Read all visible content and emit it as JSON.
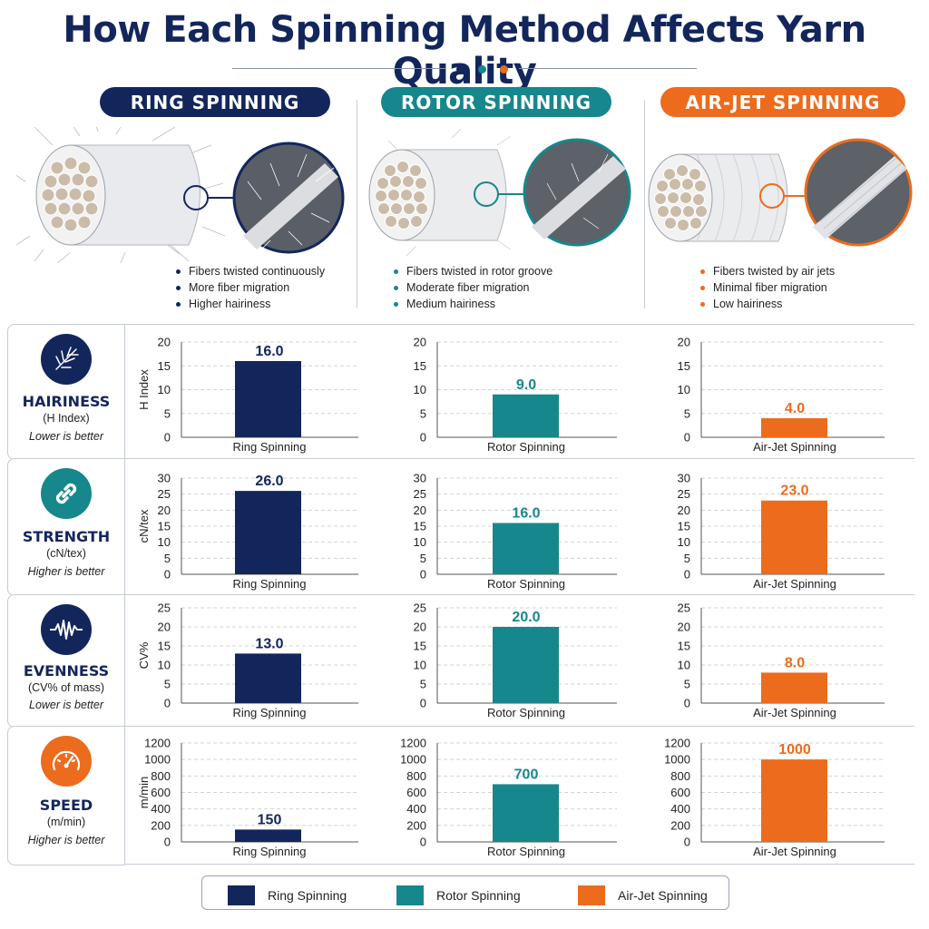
{
  "title": "How Each Spinning Method Affects Yarn Quality",
  "colors": {
    "ring": "#13265c",
    "rotor": "#16878c",
    "airjet": "#ec6b1c"
  },
  "methods": [
    {
      "key": "ring",
      "header": "RING SPINNING",
      "label": "Ring Spinning",
      "bullets": [
        "Fibers twisted continuously",
        "More fiber migration",
        "Higher hairiness"
      ]
    },
    {
      "key": "rotor",
      "header": "ROTOR SPINNING",
      "label": "Rotor Spinning",
      "bullets": [
        "Fibers twisted in rotor groove",
        "Moderate fiber migration",
        "Medium hairiness"
      ]
    },
    {
      "key": "airjet",
      "header": "AIR-JET SPINNING",
      "label": "Air-Jet Spinning",
      "bullets": [
        "Fibers twisted by air jets",
        "Minimal fiber migration",
        "Low hairiness"
      ]
    }
  ],
  "metrics": [
    {
      "name": "HAIRINESS",
      "unit": "(H Index)",
      "note": "Lower is better",
      "icon": "hairiness-icon"
    },
    {
      "name": "STRENGTH",
      "unit": "(cN/tex)",
      "note": "Higher is better",
      "icon": "chain-link-icon"
    },
    {
      "name": "EVENNESS",
      "unit": "(CV% of mass)",
      "note": "Lower is better",
      "icon": "waveform-icon"
    },
    {
      "name": "SPEED",
      "unit": "(m/min)",
      "note": "Higher is better",
      "icon": "speedometer-icon"
    }
  ],
  "legend": [
    "Ring Spinning",
    "Rotor Spinning",
    "Air-Jet Spinning"
  ],
  "chart_data": [
    {
      "type": "bar",
      "metric": "HAIRINESS",
      "ylabel": "H Index",
      "ylim": [
        0,
        20
      ],
      "yticks": [
        0,
        5,
        10,
        15,
        20
      ],
      "grid": true,
      "categories": [
        "Ring Spinning",
        "Rotor Spinning",
        "Air-Jet Spinning"
      ],
      "values": [
        16.0,
        9.0,
        4.0
      ],
      "value_labels": [
        "16.0",
        "9.0",
        "4.0"
      ]
    },
    {
      "type": "bar",
      "metric": "STRENGTH",
      "ylabel": "cN/tex",
      "ylim": [
        0,
        30
      ],
      "yticks": [
        0,
        5,
        10,
        15,
        20,
        25,
        30
      ],
      "grid": true,
      "categories": [
        "Ring Spinning",
        "Rotor Spinning",
        "Air-Jet Spinning"
      ],
      "values": [
        26.0,
        16.0,
        23.0
      ],
      "value_labels": [
        "26.0",
        "16.0",
        "23.0"
      ]
    },
    {
      "type": "bar",
      "metric": "EVENNESS",
      "ylabel": "CV%",
      "ylim": [
        0,
        25
      ],
      "yticks": [
        0,
        5,
        10,
        15,
        20,
        25
      ],
      "grid": true,
      "categories": [
        "Ring Spinning",
        "Rotor Spinning",
        "Air-Jet Spinning"
      ],
      "values": [
        13.0,
        20.0,
        8.0
      ],
      "value_labels": [
        "13.0",
        "20.0",
        "8.0"
      ]
    },
    {
      "type": "bar",
      "metric": "SPEED",
      "ylabel": "m/min",
      "ylim": [
        0,
        1200
      ],
      "yticks": [
        0,
        200,
        400,
        600,
        800,
        1000,
        1200
      ],
      "grid": true,
      "categories": [
        "Ring Spinning",
        "Rotor Spinning",
        "Air-Jet Spinning"
      ],
      "values": [
        150,
        700,
        1000
      ],
      "value_labels": [
        "150",
        "700",
        "1000"
      ]
    }
  ]
}
